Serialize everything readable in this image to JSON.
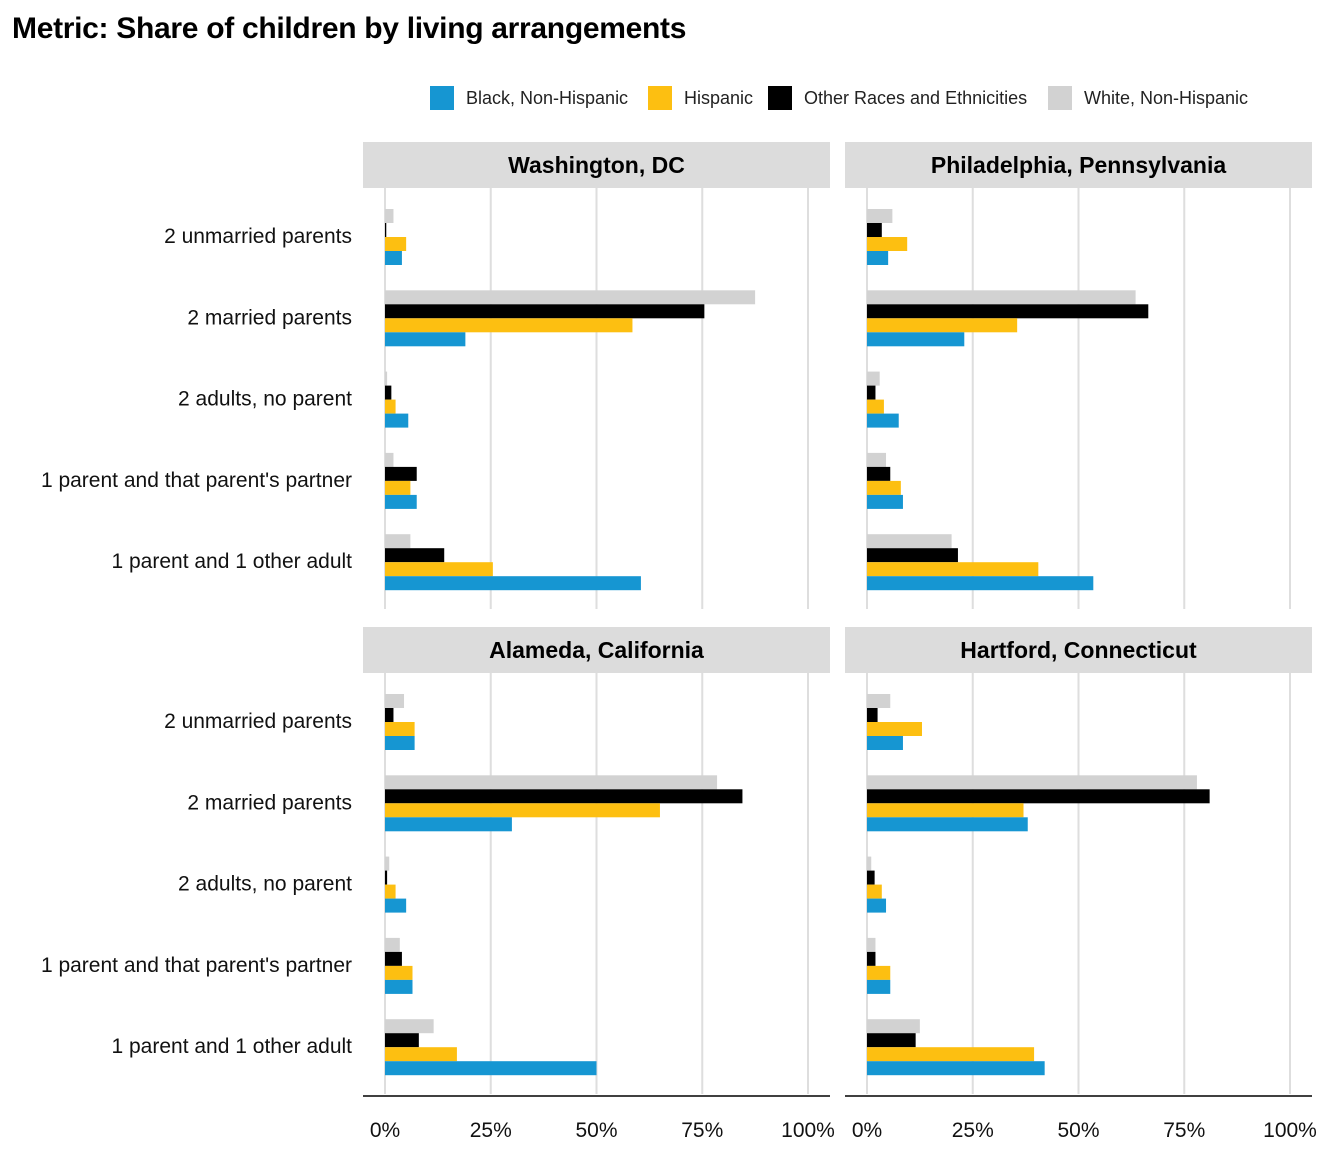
{
  "title": "Metric: Share of children by living arrangements",
  "chart_data": {
    "type": "bar",
    "orientation": "horizontal",
    "categories": [
      "2 unmarried parents",
      "2 married parents",
      "2 adults, no parent",
      "1 parent and that parent's partner",
      "1 parent and 1 other adult"
    ],
    "series_names": [
      "Black, Non-Hispanic",
      "Hispanic",
      "Other Races and Ethnicities",
      "White, Non-Hispanic"
    ],
    "colors": {
      "Black, Non-Hispanic": "#1696d2",
      "Hispanic": "#fdbf11",
      "Other Races and Ethnicities": "#000000",
      "White, Non-Hispanic": "#d2d2d2"
    },
    "xlim": [
      0,
      1
    ],
    "x_ticks": [
      0,
      0.25,
      0.5,
      0.75,
      1
    ],
    "x_tick_labels": [
      "0%",
      "25%",
      "50%",
      "75%",
      "100%"
    ],
    "legend_position": "top-right",
    "grid": "vertical",
    "panels": [
      {
        "title": "Washington, DC",
        "series": [
          {
            "name": "Black, Non-Hispanic",
            "values": [
              0.04,
              0.19,
              0.055,
              0.075,
              0.605
            ]
          },
          {
            "name": "Hispanic",
            "values": [
              0.05,
              0.585,
              0.025,
              0.06,
              0.255
            ]
          },
          {
            "name": "Other Races and Ethnicities",
            "values": [
              0.003,
              0.755,
              0.015,
              0.075,
              0.14
            ]
          },
          {
            "name": "White, Non-Hispanic",
            "values": [
              0.02,
              0.875,
              0.005,
              0.02,
              0.06
            ]
          }
        ]
      },
      {
        "title": "Philadelphia, Pennsylvania",
        "series": [
          {
            "name": "Black, Non-Hispanic",
            "values": [
              0.05,
              0.23,
              0.075,
              0.085,
              0.535
            ]
          },
          {
            "name": "Hispanic",
            "values": [
              0.095,
              0.355,
              0.04,
              0.08,
              0.405
            ]
          },
          {
            "name": "Other Races and Ethnicities",
            "values": [
              0.035,
              0.665,
              0.02,
              0.055,
              0.215
            ]
          },
          {
            "name": "White, Non-Hispanic",
            "values": [
              0.06,
              0.635,
              0.03,
              0.045,
              0.2
            ]
          }
        ]
      },
      {
        "title": "Alameda, California",
        "series": [
          {
            "name": "Black, Non-Hispanic",
            "values": [
              0.07,
              0.3,
              0.05,
              0.065,
              0.5
            ]
          },
          {
            "name": "Hispanic",
            "values": [
              0.07,
              0.65,
              0.025,
              0.065,
              0.17
            ]
          },
          {
            "name": "Other Races and Ethnicities",
            "values": [
              0.02,
              0.845,
              0.005,
              0.04,
              0.08
            ]
          },
          {
            "name": "White, Non-Hispanic",
            "values": [
              0.045,
              0.785,
              0.01,
              0.035,
              0.115
            ]
          }
        ]
      },
      {
        "title": "Hartford, Connecticut",
        "series": [
          {
            "name": "Black, Non-Hispanic",
            "values": [
              0.085,
              0.38,
              0.045,
              0.055,
              0.42
            ]
          },
          {
            "name": "Hispanic",
            "values": [
              0.13,
              0.37,
              0.035,
              0.055,
              0.395
            ]
          },
          {
            "name": "Other Races and Ethnicities",
            "values": [
              0.025,
              0.81,
              0.018,
              0.02,
              0.115
            ]
          },
          {
            "name": "White, Non-Hispanic",
            "values": [
              0.055,
              0.78,
              0.01,
              0.02,
              0.125
            ]
          }
        ]
      }
    ]
  }
}
